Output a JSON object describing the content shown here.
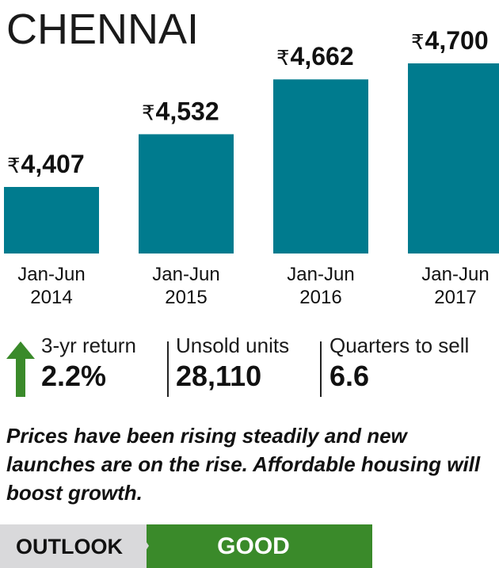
{
  "chart_data": {
    "type": "bar",
    "title": "CHENNAI",
    "currency_symbol": "₹",
    "categories": [
      "Jan-Jun 2014",
      "Jan-Jun 2015",
      "Jan-Jun 2016",
      "Jan-Jun 2017"
    ],
    "category_lines": [
      [
        "Jan-Jun",
        "2014"
      ],
      [
        "Jan-Jun",
        "2015"
      ],
      [
        "Jan-Jun",
        "2016"
      ],
      [
        "Jan-Jun",
        "2017"
      ]
    ],
    "values": [
      4407,
      4532,
      4662,
      4700
    ],
    "value_labels": [
      "4,407",
      "4,532",
      "4,662",
      "4,700"
    ],
    "bar_color": "#007b8e",
    "xlabel": "",
    "ylabel": ""
  },
  "stats": {
    "arrow_color": "#3a8a2a",
    "items": [
      {
        "label": "3-yr return",
        "value": "2.2%"
      },
      {
        "label": "Unsold units",
        "value": "28,110"
      },
      {
        "label": "Quarters to sell",
        "value": "6.6"
      }
    ]
  },
  "summary": "Prices have been rising steadily and new launches are on the rise. Affordable housing will boost growth.",
  "outlook": {
    "label": "OUTLOOK",
    "value": "GOOD",
    "value_color": "#3a8a2a"
  }
}
